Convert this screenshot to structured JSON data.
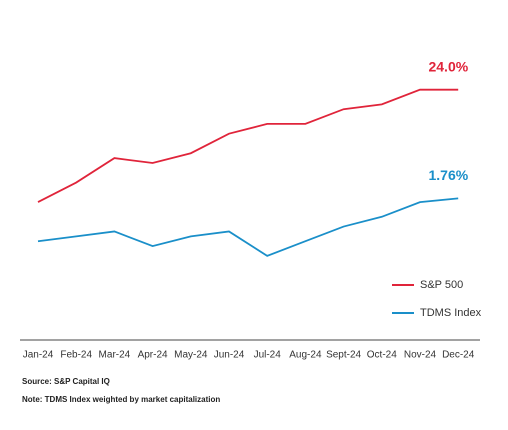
{
  "chart_data": {
    "type": "line",
    "categories": [
      "Jan-24",
      "Feb-24",
      "Mar-24",
      "Apr-24",
      "May-24",
      "Jun-24",
      "Jul-24",
      "Aug-24",
      "Sept-24",
      "Oct-24",
      "Nov-24",
      "Dec-24"
    ],
    "series": [
      {
        "name": "S&P 500",
        "color": "#e0243a",
        "values": [
          1,
          5,
          10,
          9,
          11,
          15,
          17,
          17,
          20,
          21,
          24,
          24.0
        ],
        "end_label": "24.0%"
      },
      {
        "name": "TDMS Index",
        "color": "#1a8fc9",
        "values": [
          -7,
          -6,
          -5,
          -8,
          -6,
          -5,
          -10,
          -7,
          -4,
          -2,
          1,
          1.76
        ],
        "end_label": "1.76%"
      }
    ],
    "ylim": [
      -18,
      27
    ],
    "legend": "lower right",
    "notes": [
      "Source: S&P Capital IQ",
      "Note: TDMS Index weighted by market capitalization"
    ]
  }
}
